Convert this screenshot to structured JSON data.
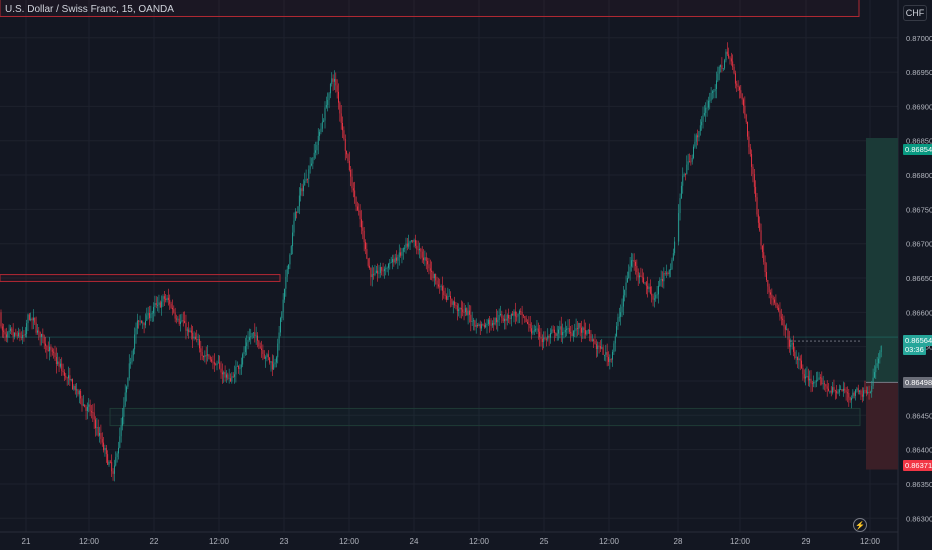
{
  "header": {
    "title": "U.S. Dollar / Swiss Franc, 15, OANDA",
    "currency": "CHF"
  },
  "colors": {
    "up": "#26a69a",
    "down": "#f23645",
    "bg": "#131722",
    "grid": "#1e222d",
    "zone_red": "#b22833",
    "profit": "#1b3a37",
    "loss": "#3b1f27"
  },
  "chart_data": {
    "type": "candlestick",
    "title": "U.S. Dollar / Swiss Franc, 15, OANDA",
    "ylim": [
      0.8628,
      0.87055
    ],
    "y_ticks": [
      "0.87000",
      "0.86950",
      "0.86900",
      "0.86850",
      "0.86800",
      "0.86750",
      "0.86700",
      "0.86650",
      "0.86600",
      "0.86550",
      "0.86500",
      "0.86450",
      "0.86400",
      "0.86350",
      "0.86300"
    ],
    "x_ticks": [
      "21",
      "12:00",
      "22",
      "12:00",
      "23",
      "12:00",
      "24",
      "12:00",
      "25",
      "12:00",
      "28",
      "12:00",
      "29",
      "12:00"
    ],
    "trend": [
      [
        "21 00:00",
        0.866
      ],
      [
        "21 06:00",
        0.8652
      ],
      [
        "21 12:00",
        0.8645
      ],
      [
        "21 16:00",
        0.8636
      ],
      [
        "21 20:00",
        0.8658
      ],
      [
        "22 02:00",
        0.8662
      ],
      [
        "22 08:00",
        0.8655
      ],
      [
        "22 14:00",
        0.865
      ],
      [
        "22 18:00",
        0.8657
      ],
      [
        "22 22:00",
        0.8652
      ],
      [
        "23 02:00",
        0.8675
      ],
      [
        "23 06:00",
        0.8685
      ],
      [
        "23 09:00",
        0.8695
      ],
      [
        "23 12:00",
        0.868
      ],
      [
        "23 16:00",
        0.8665
      ],
      [
        "24 00:00",
        0.867
      ],
      [
        "24 06:00",
        0.8662
      ],
      [
        "24 12:00",
        0.8658
      ],
      [
        "24 18:00",
        0.866
      ],
      [
        "25 00:00",
        0.8656
      ],
      [
        "25 06:00",
        0.8658
      ],
      [
        "25 12:00",
        0.8653
      ],
      [
        "25 16:00",
        0.8668
      ],
      [
        "25 20:00",
        0.8662
      ],
      [
        "26 00:00",
        0.8668
      ],
      [
        "28 00:00",
        0.8678
      ],
      [
        "28 06:00",
        0.8692
      ],
      [
        "28 09:00",
        0.8698
      ],
      [
        "28 12:00",
        0.869
      ],
      [
        "28 16:00",
        0.8665
      ],
      [
        "28 20:00",
        0.8656
      ],
      [
        "29 00:00",
        0.865
      ],
      [
        "29 08:00",
        0.8648
      ],
      [
        "29 12:00",
        0.8649
      ],
      [
        "29 14:00",
        0.86564
      ]
    ],
    "zones": [
      {
        "type": "supply",
        "y1": 0.87031,
        "y2": 0.87072
      },
      {
        "type": "supply",
        "y1": 0.86645,
        "y2": 0.86655
      },
      {
        "type": "demand",
        "y1": 0.86435,
        "y2": 0.8646
      }
    ],
    "position": {
      "entry": 0.86498,
      "target": 0.86854,
      "stop": 0.86371
    },
    "current_price": 0.86564
  },
  "labels": {
    "target": "0.86854",
    "current": "0.86564",
    "countdown": "03:36",
    "entry": "0.86498",
    "stop": "0.86371"
  }
}
